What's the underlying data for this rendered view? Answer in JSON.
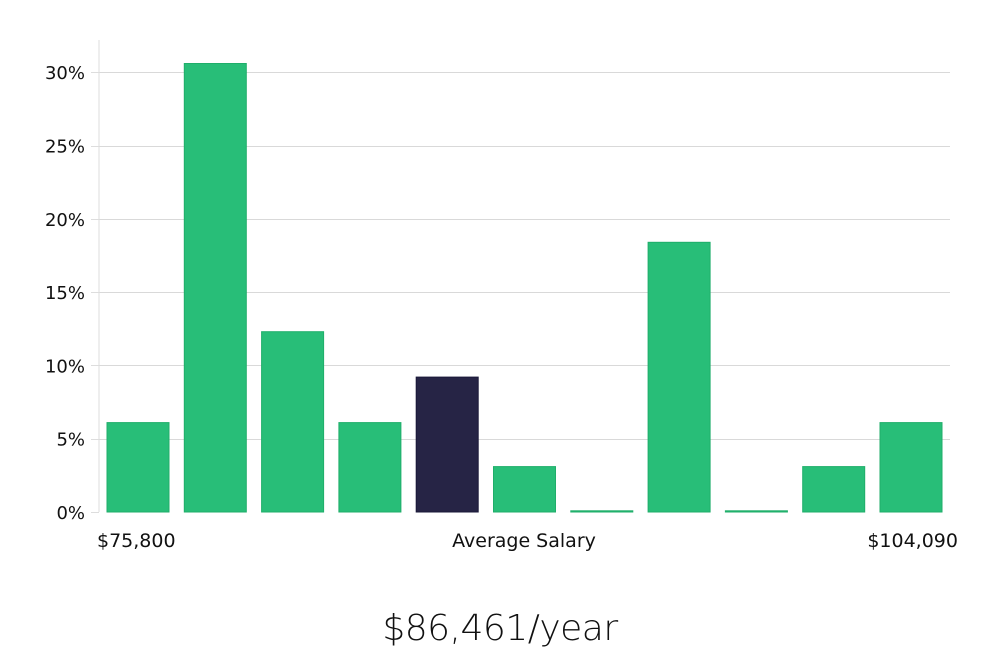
{
  "chart_data": {
    "type": "bar",
    "y_ticks": [
      0,
      5,
      10,
      15,
      20,
      25,
      30
    ],
    "y_tick_labels": [
      "0%",
      "5%",
      "10%",
      "15%",
      "20%",
      "25%",
      "30%"
    ],
    "ylim": [
      0,
      32.2
    ],
    "x_left_label": "$75,800",
    "x_center_label": "Average Salary",
    "x_right_label": "$104,090",
    "values": [
      6.1,
      30.6,
      12.3,
      6.1,
      9.2,
      3.1,
      0,
      18.4,
      0,
      3.1,
      6.1
    ],
    "highlight_index": 4,
    "grid": true,
    "colors": {
      "bar": "#28be78",
      "bar_edge": "#1fae6a",
      "highlight": "#262445",
      "grid": "#d9d9d9",
      "axis": "#dddddd"
    }
  },
  "summary": {
    "salary_text": "$86,461/year"
  }
}
